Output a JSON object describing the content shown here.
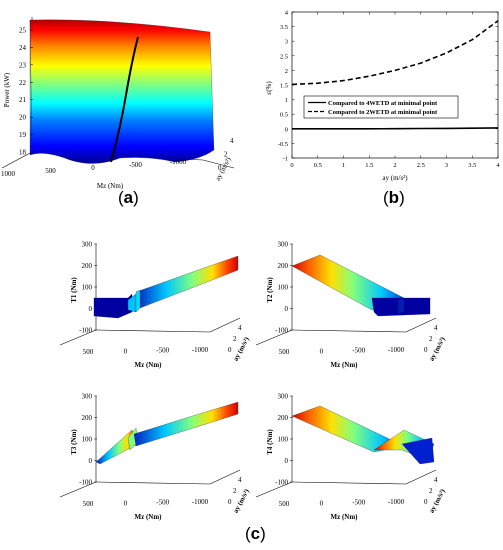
{
  "panel_labels": {
    "a": "a",
    "b": "b",
    "c": "c"
  },
  "colormap": [
    "#00008f",
    "#0000ff",
    "#0080ff",
    "#00ffff",
    "#80ff80",
    "#ffff00",
    "#ff8000",
    "#ff0000",
    "#800000"
  ],
  "chart_data": [
    {
      "id": "a",
      "type": "surface3d",
      "zlabel": "Power (kW)",
      "xlabel": "Mz (Nm)",
      "ylabel": "ay (m/s²)",
      "x_ticks": [
        "1000",
        "500",
        "0",
        "-500",
        "-1000"
      ],
      "y_ticks": [
        "0",
        "2",
        "4"
      ],
      "z_ticks": [
        "18",
        "19",
        "20",
        "21",
        "22",
        "23",
        "24",
        "25"
      ],
      "zlim": [
        18,
        25
      ],
      "minimal_point_curve": {
        "ay": [
          0,
          1,
          2,
          3,
          4
        ],
        "Mz": [
          0,
          -50,
          -100,
          -150,
          -200
        ],
        "power": [
          18.2,
          19.4,
          21.0,
          22.8,
          24.8
        ]
      }
    },
    {
      "id": "b",
      "type": "line",
      "xlabel": "ay (m/s²)",
      "ylabel": "ε(%)",
      "xlim": [
        0,
        4
      ],
      "ylim": [
        -1,
        4
      ],
      "x_ticks": [
        "0",
        "0.5",
        "1",
        "1.5",
        "2",
        "2.5",
        "3",
        "3.5",
        "4"
      ],
      "y_ticks": [
        "-1",
        "-0.5",
        "0",
        "0.5",
        "1",
        "1.5",
        "2",
        "2.5",
        "3",
        "3.5",
        "4"
      ],
      "legend_position": "center",
      "series": [
        {
          "name": "Compared to 4WETD at minimal point",
          "style": "solid",
          "x": [
            0,
            0.5,
            1,
            1.5,
            2,
            2.5,
            3,
            3.5,
            4
          ],
          "y": [
            0,
            0,
            0,
            0,
            0.005,
            0.01,
            0.015,
            0.02,
            0.03
          ]
        },
        {
          "name": "Compared to 2WETD at minimal point",
          "style": "dashed",
          "x": [
            0,
            0.5,
            1,
            1.5,
            2,
            2.5,
            3,
            3.5,
            4
          ],
          "y": [
            1.52,
            1.56,
            1.65,
            1.8,
            2.0,
            2.25,
            2.6,
            3.05,
            3.7
          ]
        }
      ]
    },
    {
      "id": "c1",
      "type": "surface3d",
      "zlabel": "T1 (Nm)",
      "xlabel": "Mz (Nm)",
      "ylabel": "ay (m/s²)",
      "x_ticks": [
        "500",
        "0",
        "-500",
        "-1000"
      ],
      "y_ticks": [
        "0",
        "2",
        "4"
      ],
      "z_ticks": [
        "-100",
        "0",
        "100",
        "200",
        "300"
      ],
      "zlim": [
        -100,
        300
      ]
    },
    {
      "id": "c2",
      "type": "surface3d",
      "zlabel": "T2 (Nm)",
      "xlabel": "Mz (Nm)",
      "ylabel": "ay (m/s²)",
      "x_ticks": [
        "500",
        "0",
        "-500",
        "-1000"
      ],
      "y_ticks": [
        "0",
        "2",
        "4"
      ],
      "z_ticks": [
        "-100",
        "0",
        "100",
        "200",
        "300"
      ],
      "zlim": [
        -100,
        300
      ]
    },
    {
      "id": "c3",
      "type": "surface3d",
      "zlabel": "T3 (Nm)",
      "xlabel": "Mz (Nm)",
      "ylabel": "ay (m/s²)",
      "x_ticks": [
        "500",
        "0",
        "-500",
        "-1000"
      ],
      "y_ticks": [
        "0",
        "2",
        "4"
      ],
      "z_ticks": [
        "-100",
        "0",
        "100",
        "200",
        "300"
      ],
      "zlim": [
        -100,
        300
      ]
    },
    {
      "id": "c4",
      "type": "surface3d",
      "zlabel": "T4 (Nm)",
      "xlabel": "Mz (Nm)",
      "ylabel": "ay (m/s²)",
      "x_ticks": [
        "500",
        "0",
        "-500",
        "-1000"
      ],
      "y_ticks": [
        "0",
        "2",
        "4"
      ],
      "z_ticks": [
        "-100",
        "0",
        "100",
        "200",
        "300"
      ],
      "zlim": [
        -100,
        300
      ]
    }
  ]
}
